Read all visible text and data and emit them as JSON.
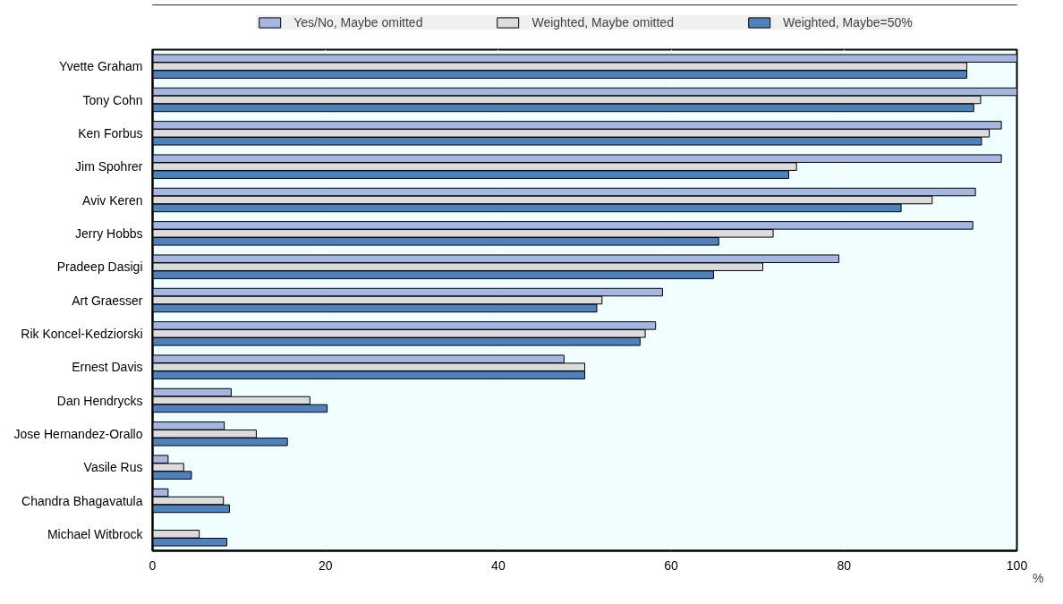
{
  "chart_data": {
    "type": "bar",
    "orientation": "horizontal",
    "xlabel": "%",
    "categories": [
      "Yvette Graham",
      "Tony Cohn",
      "Ken Forbus",
      "Jim Spohrer",
      "Aviv Keren",
      "Jerry Hobbs",
      "Pradeep Dasigi",
      "Art Graesser",
      "Rik Koncel-Kedziorski",
      "Ernest Davis",
      "Dan Hendrycks",
      "Jose Hernandez-Orallo",
      "Vasile Rus",
      "Chandra Bhagavatula",
      "Michael Witbrock"
    ],
    "series": [
      {
        "name": "Yes/No, Maybe omitted",
        "color": "#a6b6e3",
        "values": [
          100,
          100,
          98.2,
          98.2,
          95.2,
          94.9,
          79.4,
          59.0,
          58.2,
          47.6,
          9.1,
          8.3,
          1.8,
          1.8,
          null
        ]
      },
      {
        "name": "Weighted, Maybe omitted",
        "color": "#dcdcdc",
        "values": [
          94.2,
          95.8,
          96.8,
          74.5,
          90.2,
          71.8,
          70.6,
          52.0,
          57.0,
          50.0,
          18.2,
          12.0,
          3.6,
          8.2,
          5.4
        ]
      },
      {
        "name": "Weighted, Maybe=50%",
        "color": "#4f81bd",
        "values": [
          94.2,
          95.0,
          95.9,
          73.6,
          86.6,
          65.5,
          64.9,
          51.4,
          56.4,
          50.0,
          20.2,
          15.6,
          4.5,
          8.9,
          8.6
        ]
      }
    ],
    "xlim": [
      0,
      100
    ],
    "xticks": [
      0,
      20,
      40,
      60,
      80,
      100
    ],
    "grid": "x",
    "legend": "top"
  }
}
